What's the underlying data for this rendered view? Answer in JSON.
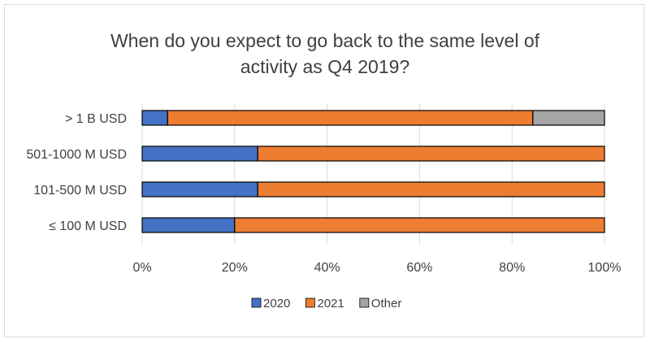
{
  "chart_data": {
    "type": "bar",
    "orientation": "horizontal",
    "stacked": true,
    "title_lines": [
      "When do you expect to go back to the same level of",
      "activity as Q4 2019?"
    ],
    "categories": [
      "> 1 B USD",
      "501-1000 M USD",
      "101-500 M USD",
      "≤ 100 M USD"
    ],
    "series": [
      {
        "name": "2020",
        "color": "#4472c4",
        "values": [
          5.5,
          25,
          25,
          20
        ]
      },
      {
        "name": "2021",
        "color": "#ed7d31",
        "values": [
          79,
          75,
          75,
          80
        ]
      },
      {
        "name": "Other",
        "color": "#a5a5a5",
        "values": [
          15.5,
          0,
          0,
          0
        ]
      }
    ],
    "xlim": [
      0,
      100
    ],
    "x_ticks": [
      "0%",
      "20%",
      "40%",
      "60%",
      "80%",
      "100%"
    ],
    "grid": true,
    "legend_position": "bottom"
  }
}
